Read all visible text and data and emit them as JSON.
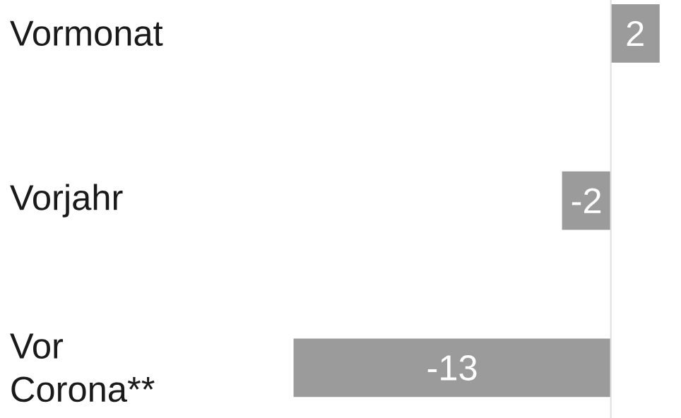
{
  "chart_data": {
    "type": "bar",
    "orientation": "horizontal",
    "categories": [
      "Vormonat",
      "Vorjahr",
      "Vor Corona**"
    ],
    "values": [
      2,
      -2,
      -13
    ],
    "color": "#9b9b9b",
    "data_labels": true,
    "tick_labels": "y"
  }
}
